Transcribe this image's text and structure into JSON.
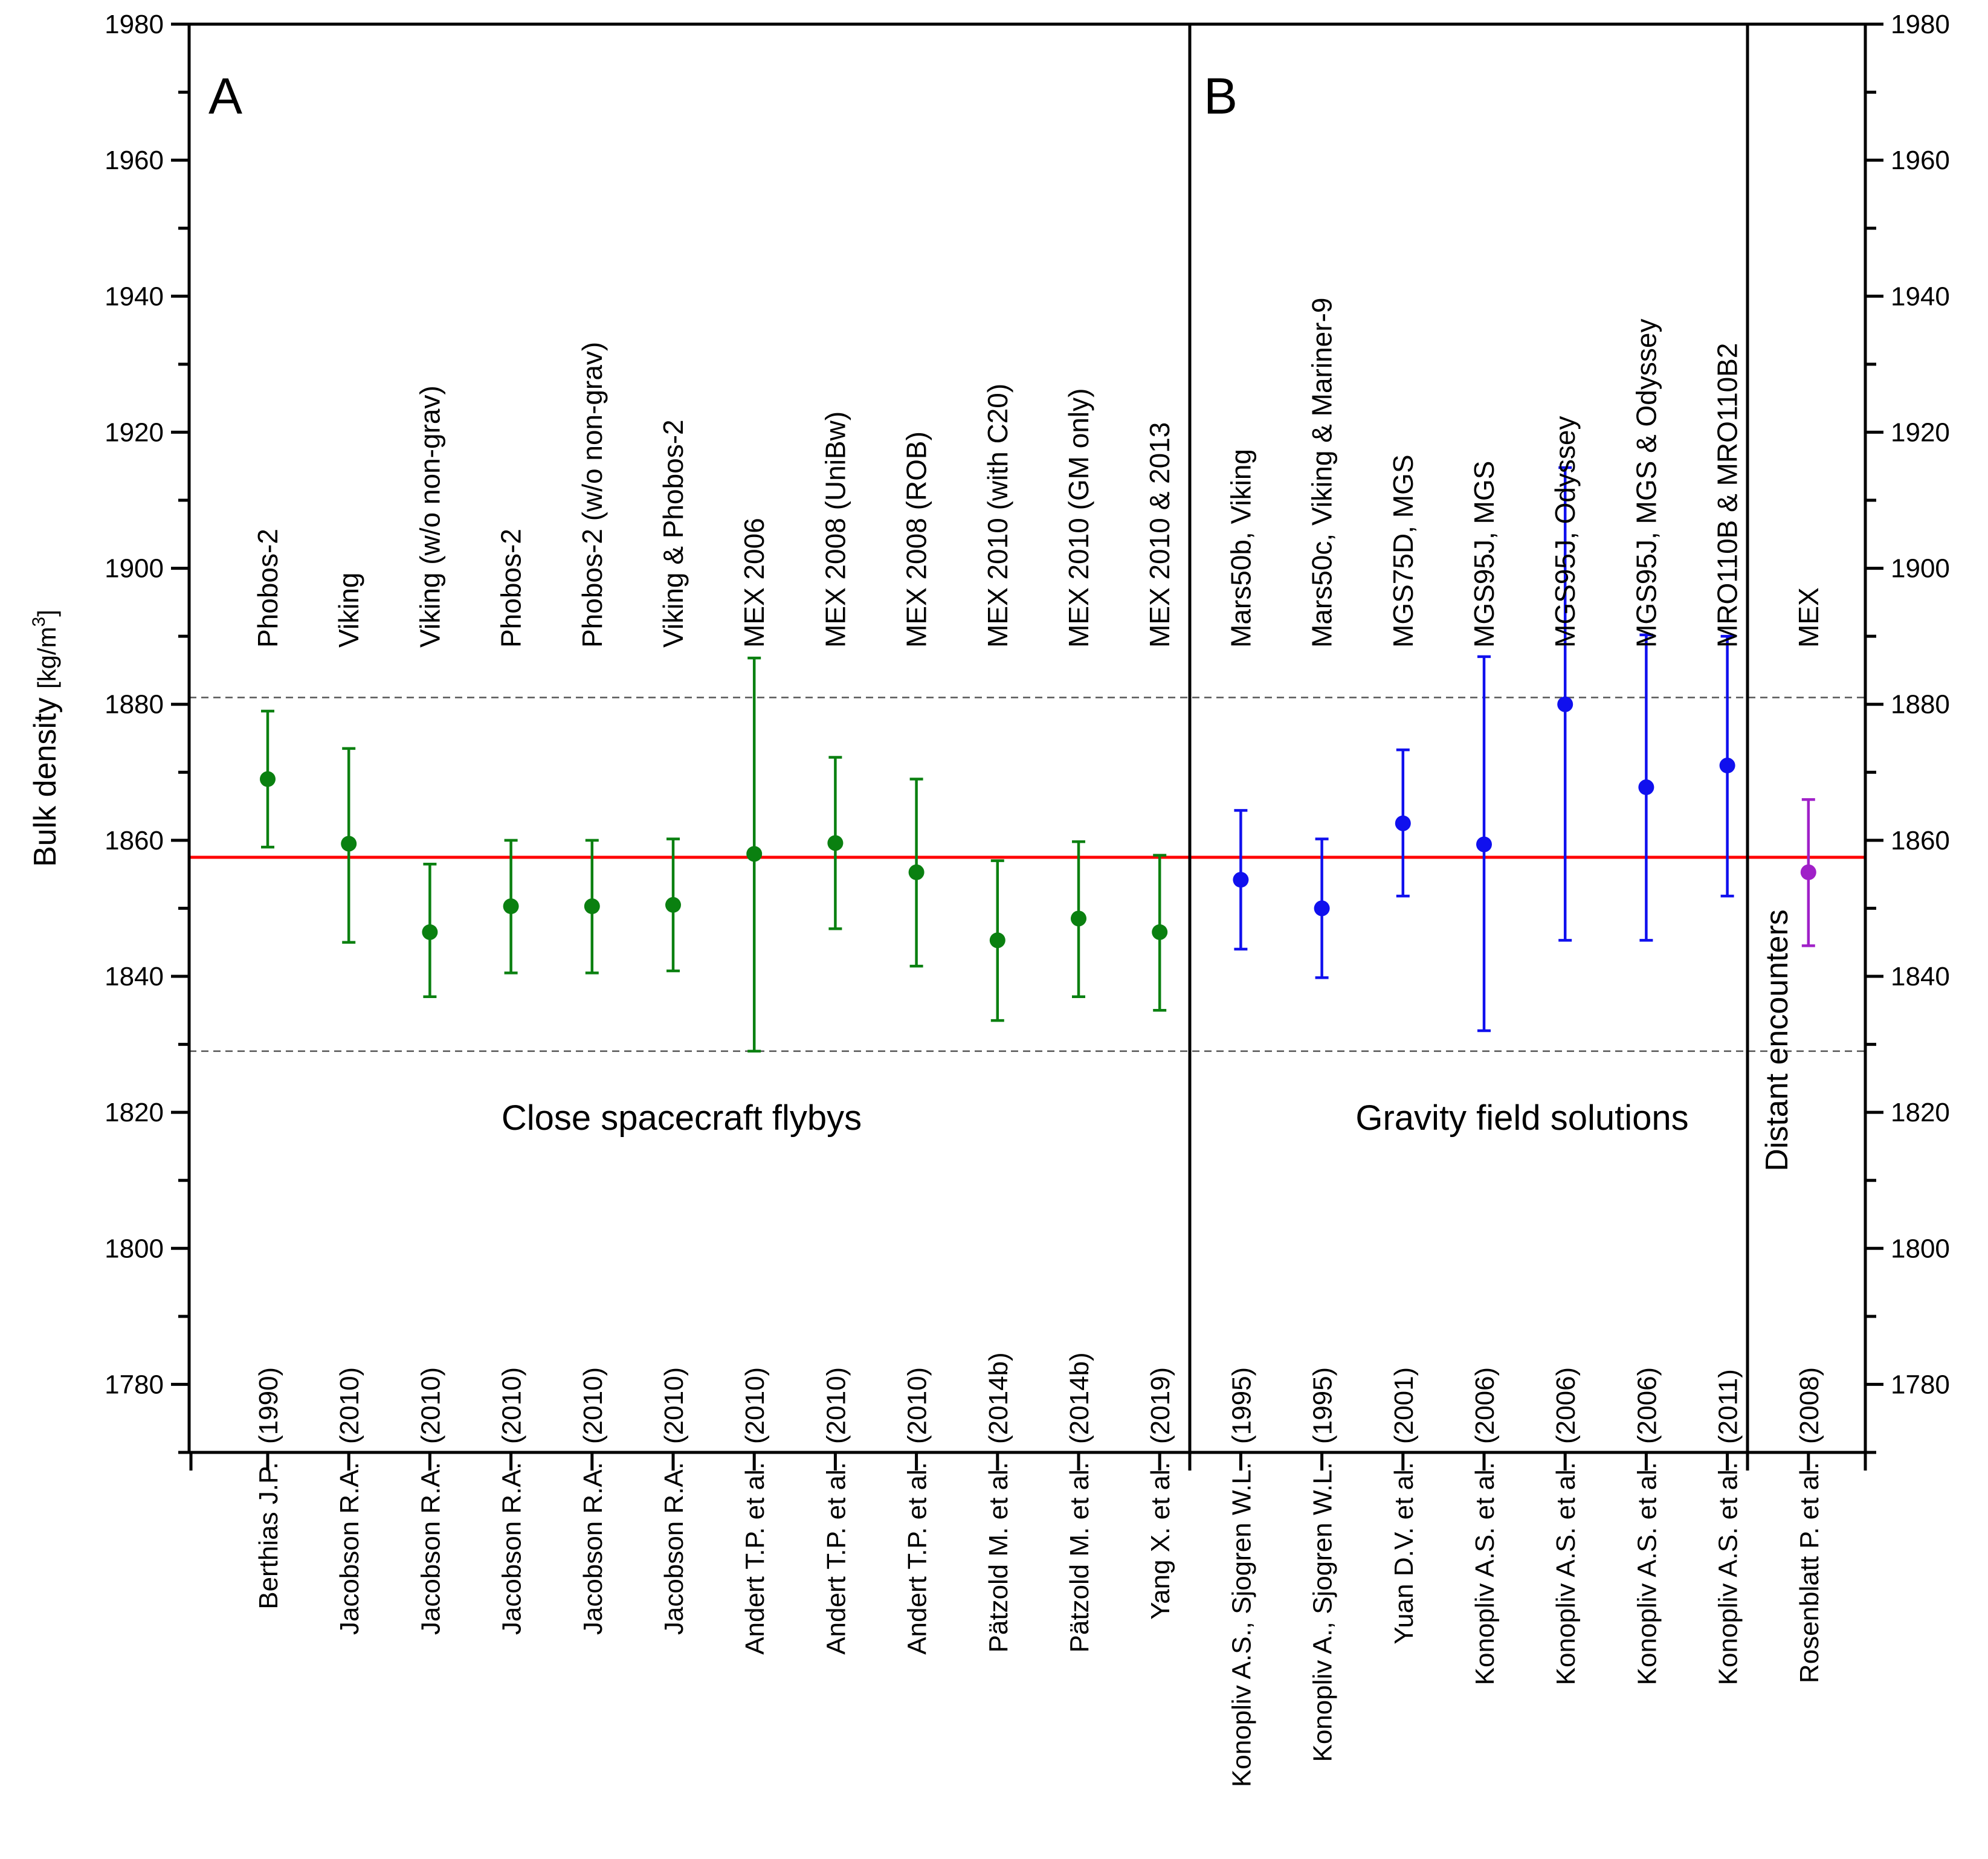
{
  "chart_data": {
    "type": "scatter",
    "ylabel": "Bulk density",
    "ylabel_unit": "[kg/m",
    "ylabel_unit_sup": "3",
    "ylabel_unit_end": "]",
    "ylim": [
      1770,
      1980
    ],
    "yticks": [
      1780,
      1800,
      1820,
      1840,
      1860,
      1880,
      1900,
      1920,
      1940,
      1960,
      1980
    ],
    "mean_line": 1857.5,
    "bounds": [
      1829,
      1881
    ],
    "panels": {
      "a": "A",
      "b": "B"
    },
    "sections": {
      "flybys": "Close spacecraft flybys",
      "gravity": "Gravity field solutions",
      "distant": "Distant encounters"
    },
    "colors": {
      "flyby": "#0a8010",
      "gravity": "#1010ee",
      "distant": "#a020c8",
      "mean": "#ff0000"
    },
    "series": [
      {
        "name": "Close spacecraft flybys",
        "points": [
          {
            "ref": "Berthias J.P.",
            "year": "(1990)",
            "method": "Phobos-2",
            "value": 1869,
            "low": 1859,
            "high": 1879
          },
          {
            "ref": "Jacobson R.A.",
            "year": "(2010)",
            "method": "Viking",
            "value": 1859.5,
            "low": 1845,
            "high": 1873.5
          },
          {
            "ref": "Jacobson R.A.",
            "year": "(2010)",
            "method": "Viking  (w/o non-grav)",
            "value": 1846.5,
            "low": 1837,
            "high": 1856.5
          },
          {
            "ref": "Jacobson R.A.",
            "year": "(2010)",
            "method": "Phobos-2",
            "value": 1850.3,
            "low": 1840.5,
            "high": 1860
          },
          {
            "ref": "Jacobson R.A.",
            "year": "(2010)",
            "method": "Phobos-2 (w/o non-grav)",
            "value": 1850.3,
            "low": 1840.5,
            "high": 1860
          },
          {
            "ref": "Jacobson R.A.",
            "year": "(2010)",
            "method": "Viking & Phobos-2",
            "value": 1850.5,
            "low": 1840.8,
            "high": 1860.2
          },
          {
            "ref": "Andert T.P. et al.",
            "year": "(2010)",
            "method": "MEX 2006",
            "value": 1858,
            "low": 1829,
            "high": 1886.8
          },
          {
            "ref": "Andert T.P. et al.",
            "year": "(2010)",
            "method": "MEX 2008 (UniBw)",
            "value": 1859.6,
            "low": 1847,
            "high": 1872.2
          },
          {
            "ref": "Andert T.P. et al.",
            "year": "(2010)",
            "method": "MEX 2008 (ROB)",
            "value": 1855.3,
            "low": 1841.5,
            "high": 1869
          },
          {
            "ref": "Pätzold M. et al.",
            "year": "(2014b)",
            "method": "MEX 2010 (with C20)",
            "value": 1845.3,
            "low": 1833.5,
            "high": 1857
          },
          {
            "ref": "Pätzold M. et al.",
            "year": "(2014b)",
            "method": "MEX 2010 (GM only)",
            "value": 1848.5,
            "low": 1837,
            "high": 1859.8
          },
          {
            "ref": "Yang X. et al.",
            "year": "(2019)",
            "method": "MEX 2010 & 2013",
            "value": 1846.5,
            "low": 1835,
            "high": 1857.8
          }
        ]
      },
      {
        "name": "Gravity field solutions",
        "points": [
          {
            "ref": "Konopliv A.S., Sjogren W.L.",
            "year": "(1995)",
            "method": "Mars50b, Viking",
            "value": 1854.2,
            "low": 1844,
            "high": 1864.4
          },
          {
            "ref": "Konopliv A., Sjogren W.L.",
            "year": "(1995)",
            "method": "Mars50c, Viking & Mariner-9",
            "value": 1850,
            "low": 1839.8,
            "high": 1860.2
          },
          {
            "ref": "Yuan D.V. et al.",
            "year": "(2001)",
            "method": "MGS75D, MGS",
            "value": 1862.5,
            "low": 1851.8,
            "high": 1873.3
          },
          {
            "ref": "Konopliv A.S. et al.",
            "year": "(2006)",
            "method": "MGS95J, MGS",
            "value": 1859.4,
            "low": 1832,
            "high": 1887
          },
          {
            "ref": "Konopliv A.S. et al.",
            "year": "(2006)",
            "method": "MGS95J, Odyssey",
            "value": 1880,
            "low": 1845.3,
            "high": 1914.8
          },
          {
            "ref": "Konopliv A.S. et al.",
            "year": "(2006)",
            "method": "MGS95J, MGS & Odyssey",
            "value": 1867.8,
            "low": 1845.3,
            "high": 1890.2
          },
          {
            "ref": "Konopliv A.S. et al.",
            "year": "(2011)",
            "method": "MRO110B & MRO110B2",
            "value": 1871,
            "low": 1851.8,
            "high": 1890
          }
        ]
      },
      {
        "name": "Distant encounters",
        "points": [
          {
            "ref": "Rosenblatt P. et al.",
            "year": "(2008)",
            "method": "MEX",
            "value": 1855.3,
            "low": 1844.5,
            "high": 1866
          }
        ]
      }
    ]
  }
}
